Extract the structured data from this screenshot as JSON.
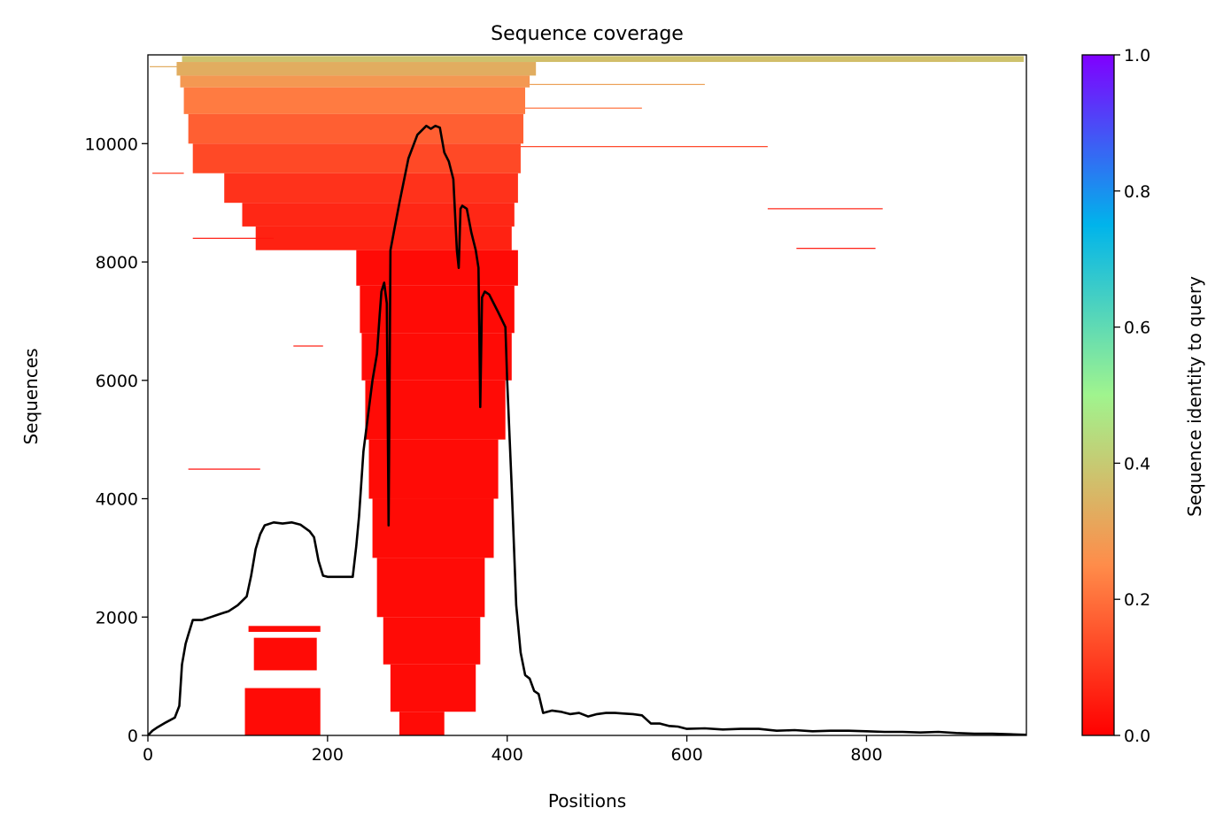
{
  "chart_data": {
    "type": "heatmap",
    "title": "Sequence coverage",
    "xlabel": "Positions",
    "ylabel": "Sequences",
    "xlim": [
      0,
      978
    ],
    "ylim": [
      0,
      11500
    ],
    "xticks": [
      0,
      200,
      400,
      600,
      800
    ],
    "yticks": [
      0,
      2000,
      4000,
      6000,
      8000,
      10000
    ],
    "grid": false,
    "colorbar": {
      "label": "Sequence identity to query",
      "range": [
        0.0,
        1.0
      ],
      "ticks": [
        "0.0",
        "0.2",
        "0.4",
        "0.6",
        "0.8",
        "1.0"
      ],
      "colormap": "rainbow_r",
      "stops": [
        "#ff0000",
        "#ff8c4a",
        "#a0f48e",
        "#00b4eb",
        "#8000ff"
      ]
    },
    "coverage_line": {
      "color": "#000000",
      "x": [
        0,
        5,
        10,
        20,
        30,
        35,
        38,
        42,
        45,
        50,
        55,
        60,
        70,
        80,
        90,
        100,
        110,
        115,
        120,
        125,
        130,
        140,
        150,
        160,
        170,
        180,
        185,
        190,
        195,
        200,
        210,
        220,
        228,
        232,
        235,
        240,
        245,
        250,
        255,
        258,
        260,
        263,
        266,
        268,
        270,
        275,
        280,
        290,
        300,
        310,
        315,
        320,
        325,
        330,
        335,
        340,
        344,
        346,
        348,
        350,
        355,
        360,
        365,
        368,
        370,
        372,
        375,
        380,
        390,
        398,
        400,
        405,
        410,
        415,
        420,
        425,
        430,
        435,
        440,
        450,
        460,
        470,
        480,
        490,
        500,
        510,
        520,
        530,
        540,
        550,
        560,
        570,
        580,
        590,
        600,
        620,
        640,
        660,
        680,
        700,
        720,
        740,
        760,
        780,
        800,
        820,
        840,
        860,
        880,
        900,
        920,
        940,
        960,
        978
      ],
      "y": [
        0,
        80,
        130,
        220,
        300,
        500,
        1200,
        1550,
        1700,
        1950,
        1950,
        1950,
        2000,
        2050,
        2100,
        2200,
        2350,
        2700,
        3150,
        3400,
        3550,
        3600,
        3580,
        3600,
        3560,
        3450,
        3350,
        2950,
        2700,
        2680,
        2680,
        2680,
        2680,
        3200,
        3700,
        4800,
        5400,
        6000,
        6450,
        7100,
        7500,
        7650,
        7300,
        3550,
        8200,
        8600,
        9000,
        9750,
        10150,
        10300,
        10250,
        10300,
        10270,
        9850,
        9700,
        9400,
        8200,
        7900,
        8900,
        8950,
        8900,
        8500,
        8200,
        7900,
        5550,
        7400,
        7500,
        7450,
        7150,
        6900,
        6000,
        4200,
        2200,
        1400,
        1020,
        960,
        750,
        700,
        380,
        420,
        400,
        360,
        380,
        320,
        360,
        380,
        380,
        370,
        360,
        340,
        200,
        200,
        160,
        150,
        110,
        120,
        100,
        110,
        110,
        80,
        90,
        70,
        80,
        80,
        70,
        60,
        60,
        50,
        60,
        40,
        30,
        30,
        20,
        10
      ]
    },
    "coverage_bands": [
      {
        "y0": 11380,
        "y1": 11480,
        "x0": 38,
        "x1": 975,
        "identity": 0.38
      },
      {
        "y0": 11150,
        "y1": 11380,
        "x0": 32,
        "x1": 432,
        "identity": 0.33
      },
      {
        "y0": 10950,
        "y1": 11150,
        "x0": 36,
        "x1": 425,
        "identity": 0.28
      },
      {
        "y0": 10500,
        "y1": 10950,
        "x0": 40,
        "x1": 420,
        "identity": 0.22
      },
      {
        "y0": 10000,
        "y1": 10500,
        "x0": 45,
        "x1": 418,
        "identity": 0.17
      },
      {
        "y0": 9500,
        "y1": 10000,
        "x0": 50,
        "x1": 415,
        "identity": 0.13
      },
      {
        "y0": 9000,
        "y1": 9500,
        "x0": 85,
        "x1": 412,
        "identity": 0.09
      },
      {
        "y0": 8600,
        "y1": 9000,
        "x0": 105,
        "x1": 408,
        "identity": 0.07
      },
      {
        "y0": 8200,
        "y1": 8600,
        "x0": 120,
        "x1": 405,
        "identity": 0.06
      },
      {
        "y0": 7600,
        "y1": 8200,
        "x0": 232,
        "x1": 412,
        "identity": 0.02
      },
      {
        "y0": 6800,
        "y1": 7600,
        "x0": 236,
        "x1": 408,
        "identity": 0.02
      },
      {
        "y0": 6000,
        "y1": 6800,
        "x0": 238,
        "x1": 405,
        "identity": 0.02
      },
      {
        "y0": 5000,
        "y1": 6000,
        "x0": 242,
        "x1": 398,
        "identity": 0.02
      },
      {
        "y0": 4000,
        "y1": 5000,
        "x0": 246,
        "x1": 390,
        "identity": 0.02
      },
      {
        "y0": 3000,
        "y1": 4000,
        "x0": 250,
        "x1": 385,
        "identity": 0.02
      },
      {
        "y0": 2000,
        "y1": 3000,
        "x0": 255,
        "x1": 375,
        "identity": 0.02
      },
      {
        "y0": 1200,
        "y1": 2000,
        "x0": 262,
        "x1": 370,
        "identity": 0.02
      },
      {
        "y0": 400,
        "y1": 1200,
        "x0": 270,
        "x1": 365,
        "identity": 0.02
      },
      {
        "y0": 0,
        "y1": 400,
        "x0": 280,
        "x1": 330,
        "identity": 0.02
      },
      {
        "y0": 1750,
        "y1": 1850,
        "x0": 112,
        "x1": 192,
        "identity": 0.02
      },
      {
        "y0": 1100,
        "y1": 1650,
        "x0": 118,
        "x1": 188,
        "identity": 0.02
      },
      {
        "y0": 0,
        "y1": 800,
        "x0": 108,
        "x1": 192,
        "identity": 0.02
      }
    ],
    "sparse_segments": [
      {
        "y": 4500,
        "x0": 45,
        "x1": 125,
        "identity": 0.02
      },
      {
        "y": 6580,
        "x0": 162,
        "x1": 195,
        "identity": 0.05
      },
      {
        "y": 8400,
        "x0": 50,
        "x1": 140,
        "identity": 0.04
      },
      {
        "y": 8900,
        "x0": 690,
        "x1": 818,
        "identity": 0.06
      },
      {
        "y": 8230,
        "x0": 722,
        "x1": 810,
        "identity": 0.04
      },
      {
        "y": 9500,
        "x0": 5,
        "x1": 40,
        "identity": 0.1
      },
      {
        "y": 9950,
        "x0": 415,
        "x1": 690,
        "identity": 0.12
      },
      {
        "y": 10600,
        "x0": 420,
        "x1": 550,
        "identity": 0.2
      },
      {
        "y": 11000,
        "x0": 425,
        "x1": 620,
        "identity": 0.3
      },
      {
        "y": 11300,
        "x0": 2,
        "x1": 38,
        "identity": 0.33
      },
      {
        "y": 11400,
        "x0": 432,
        "x1": 900,
        "identity": 0.36
      }
    ]
  }
}
